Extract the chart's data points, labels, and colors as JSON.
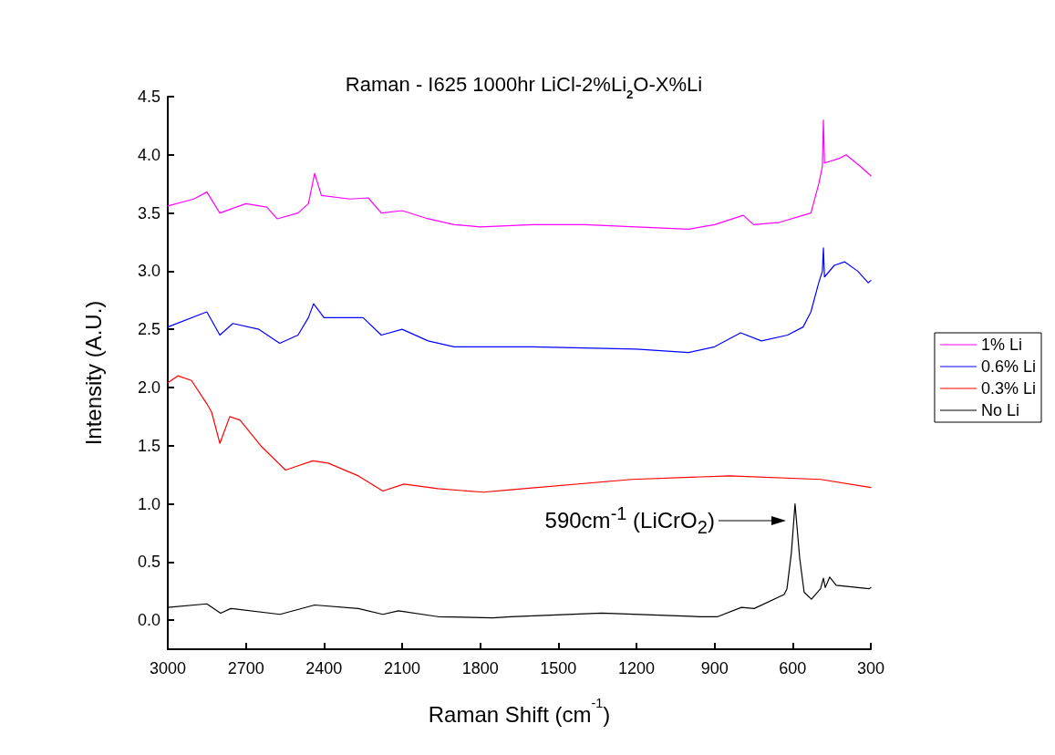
{
  "chart_data": {
    "type": "line",
    "title": "Raman - I625 1000hr LiCl-2%Li$_{2}$O-X%Li",
    "xlabel": "Raman Shift (cm$^{-1}$)",
    "ylabel": "Intensity (A.U.)",
    "xlim": [
      3000,
      300
    ],
    "xticks": [
      3000,
      2700,
      2400,
      2100,
      1800,
      1500,
      1200,
      900,
      600,
      300
    ],
    "ylim": [
      -0.25,
      4.5
    ],
    "yticks": [
      {
        "value": 0,
        "label": "0.0"
      },
      0.5,
      {
        "value": 1,
        "label": "1.0"
      },
      1.5,
      {
        "value": 2,
        "label": "2.0"
      },
      2.5,
      {
        "value": 3,
        "label": "3.0"
      },
      3.5,
      {
        "value": 4,
        "label": "4.0"
      },
      4.5
    ],
    "grid": false,
    "legend": "right",
    "marker": "none",
    "line_style": "solid",
    "annotations": [
      "590cm$^{-1}$ (LiCrO$_{2}$)"
    ],
    "series": [
      {
        "name": "1% Li",
        "color": "#ff00ff",
        "x": [
          3000,
          2900,
          2850,
          2800,
          2700,
          2620,
          2580,
          2500,
          2460,
          2436,
          2410,
          2300,
          2230,
          2180,
          2100,
          2000,
          1900,
          1800,
          1600,
          1400,
          1200,
          1000,
          900,
          790,
          750,
          650,
          560,
          530,
          500,
          486,
          482,
          478,
          420,
          395,
          340,
          300
        ],
        "values": [
          3.56,
          3.62,
          3.68,
          3.5,
          3.58,
          3.55,
          3.45,
          3.5,
          3.58,
          3.84,
          3.65,
          3.62,
          3.63,
          3.5,
          3.52,
          3.45,
          3.4,
          3.38,
          3.4,
          3.4,
          3.38,
          3.36,
          3.4,
          3.48,
          3.4,
          3.42,
          3.48,
          3.5,
          3.75,
          3.9,
          4.3,
          3.93,
          3.97,
          4.0,
          3.9,
          3.82
        ]
      },
      {
        "name": "0.6% Li",
        "color": "#0000ff",
        "x": [
          3000,
          2850,
          2800,
          2750,
          2650,
          2570,
          2500,
          2460,
          2440,
          2400,
          2250,
          2180,
          2100,
          2000,
          1900,
          1600,
          1200,
          1000,
          900,
          800,
          720,
          620,
          560,
          530,
          500,
          486,
          482,
          478,
          440,
          400,
          350,
          310,
          300
        ],
        "values": [
          2.52,
          2.65,
          2.45,
          2.55,
          2.5,
          2.38,
          2.45,
          2.6,
          2.72,
          2.6,
          2.6,
          2.45,
          2.5,
          2.4,
          2.35,
          2.35,
          2.33,
          2.3,
          2.35,
          2.47,
          2.4,
          2.45,
          2.52,
          2.65,
          2.9,
          3.0,
          3.2,
          2.95,
          3.05,
          3.08,
          3.0,
          2.9,
          2.92
        ]
      },
      {
        "name": "0.3% Li",
        "color": "#ff0000",
        "x": [
          3000,
          2961,
          2909,
          2850,
          2832,
          2800,
          2762,
          2723,
          2639,
          2548,
          2443,
          2384,
          2268,
          2174,
          2093,
          1963,
          1788,
          1683,
          1218,
          843,
          493,
          300
        ],
        "values": [
          2.04,
          2.1,
          2.06,
          1.86,
          1.79,
          1.52,
          1.75,
          1.72,
          1.49,
          1.29,
          1.37,
          1.35,
          1.24,
          1.11,
          1.17,
          1.13,
          1.1,
          1.12,
          1.21,
          1.24,
          1.21,
          1.14
        ]
      },
      {
        "name": "No Li",
        "color": "#000000",
        "x": [
          3000,
          2850,
          2797,
          2758,
          2569,
          2436,
          2268,
          2174,
          2114,
          1963,
          1753,
          1683,
          1333,
          958,
          888,
          797,
          748,
          633,
          622,
          605,
          591,
          573,
          556,
          528,
          493,
          482,
          475,
          458,
          433,
          307,
          300
        ],
        "values": [
          0.11,
          0.14,
          0.06,
          0.1,
          0.05,
          0.13,
          0.1,
          0.05,
          0.08,
          0.03,
          0.02,
          0.03,
          0.06,
          0.03,
          0.03,
          0.11,
          0.1,
          0.22,
          0.27,
          0.58,
          1.0,
          0.53,
          0.24,
          0.18,
          0.27,
          0.36,
          0.28,
          0.37,
          0.3,
          0.27,
          0.28
        ]
      }
    ]
  }
}
